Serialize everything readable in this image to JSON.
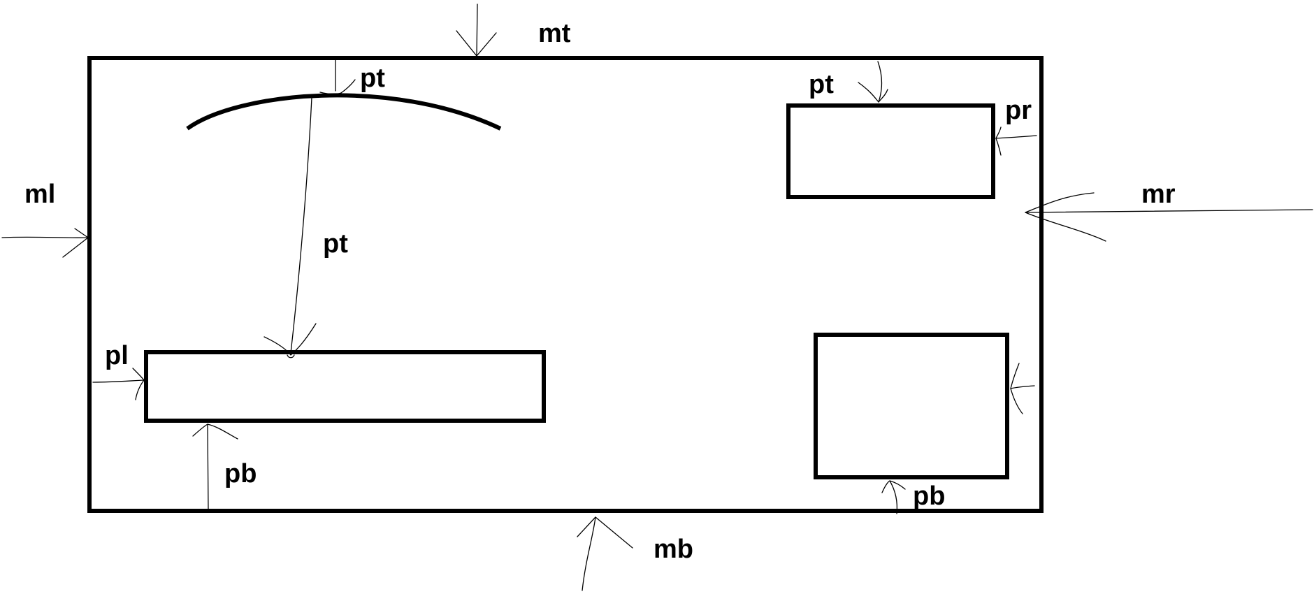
{
  "diagram": {
    "labels": {
      "mt": "mt",
      "mb": "mb",
      "ml": "ml",
      "mr": "mr",
      "pt_arc": "pt",
      "pt_vertical": "pt",
      "pt_box": "pt",
      "pr": "pr",
      "pl": "pl",
      "pb_left": "pb",
      "pb_right": "pb"
    },
    "colors": {
      "stroke": "#000000",
      "background": "#ffffff"
    }
  }
}
